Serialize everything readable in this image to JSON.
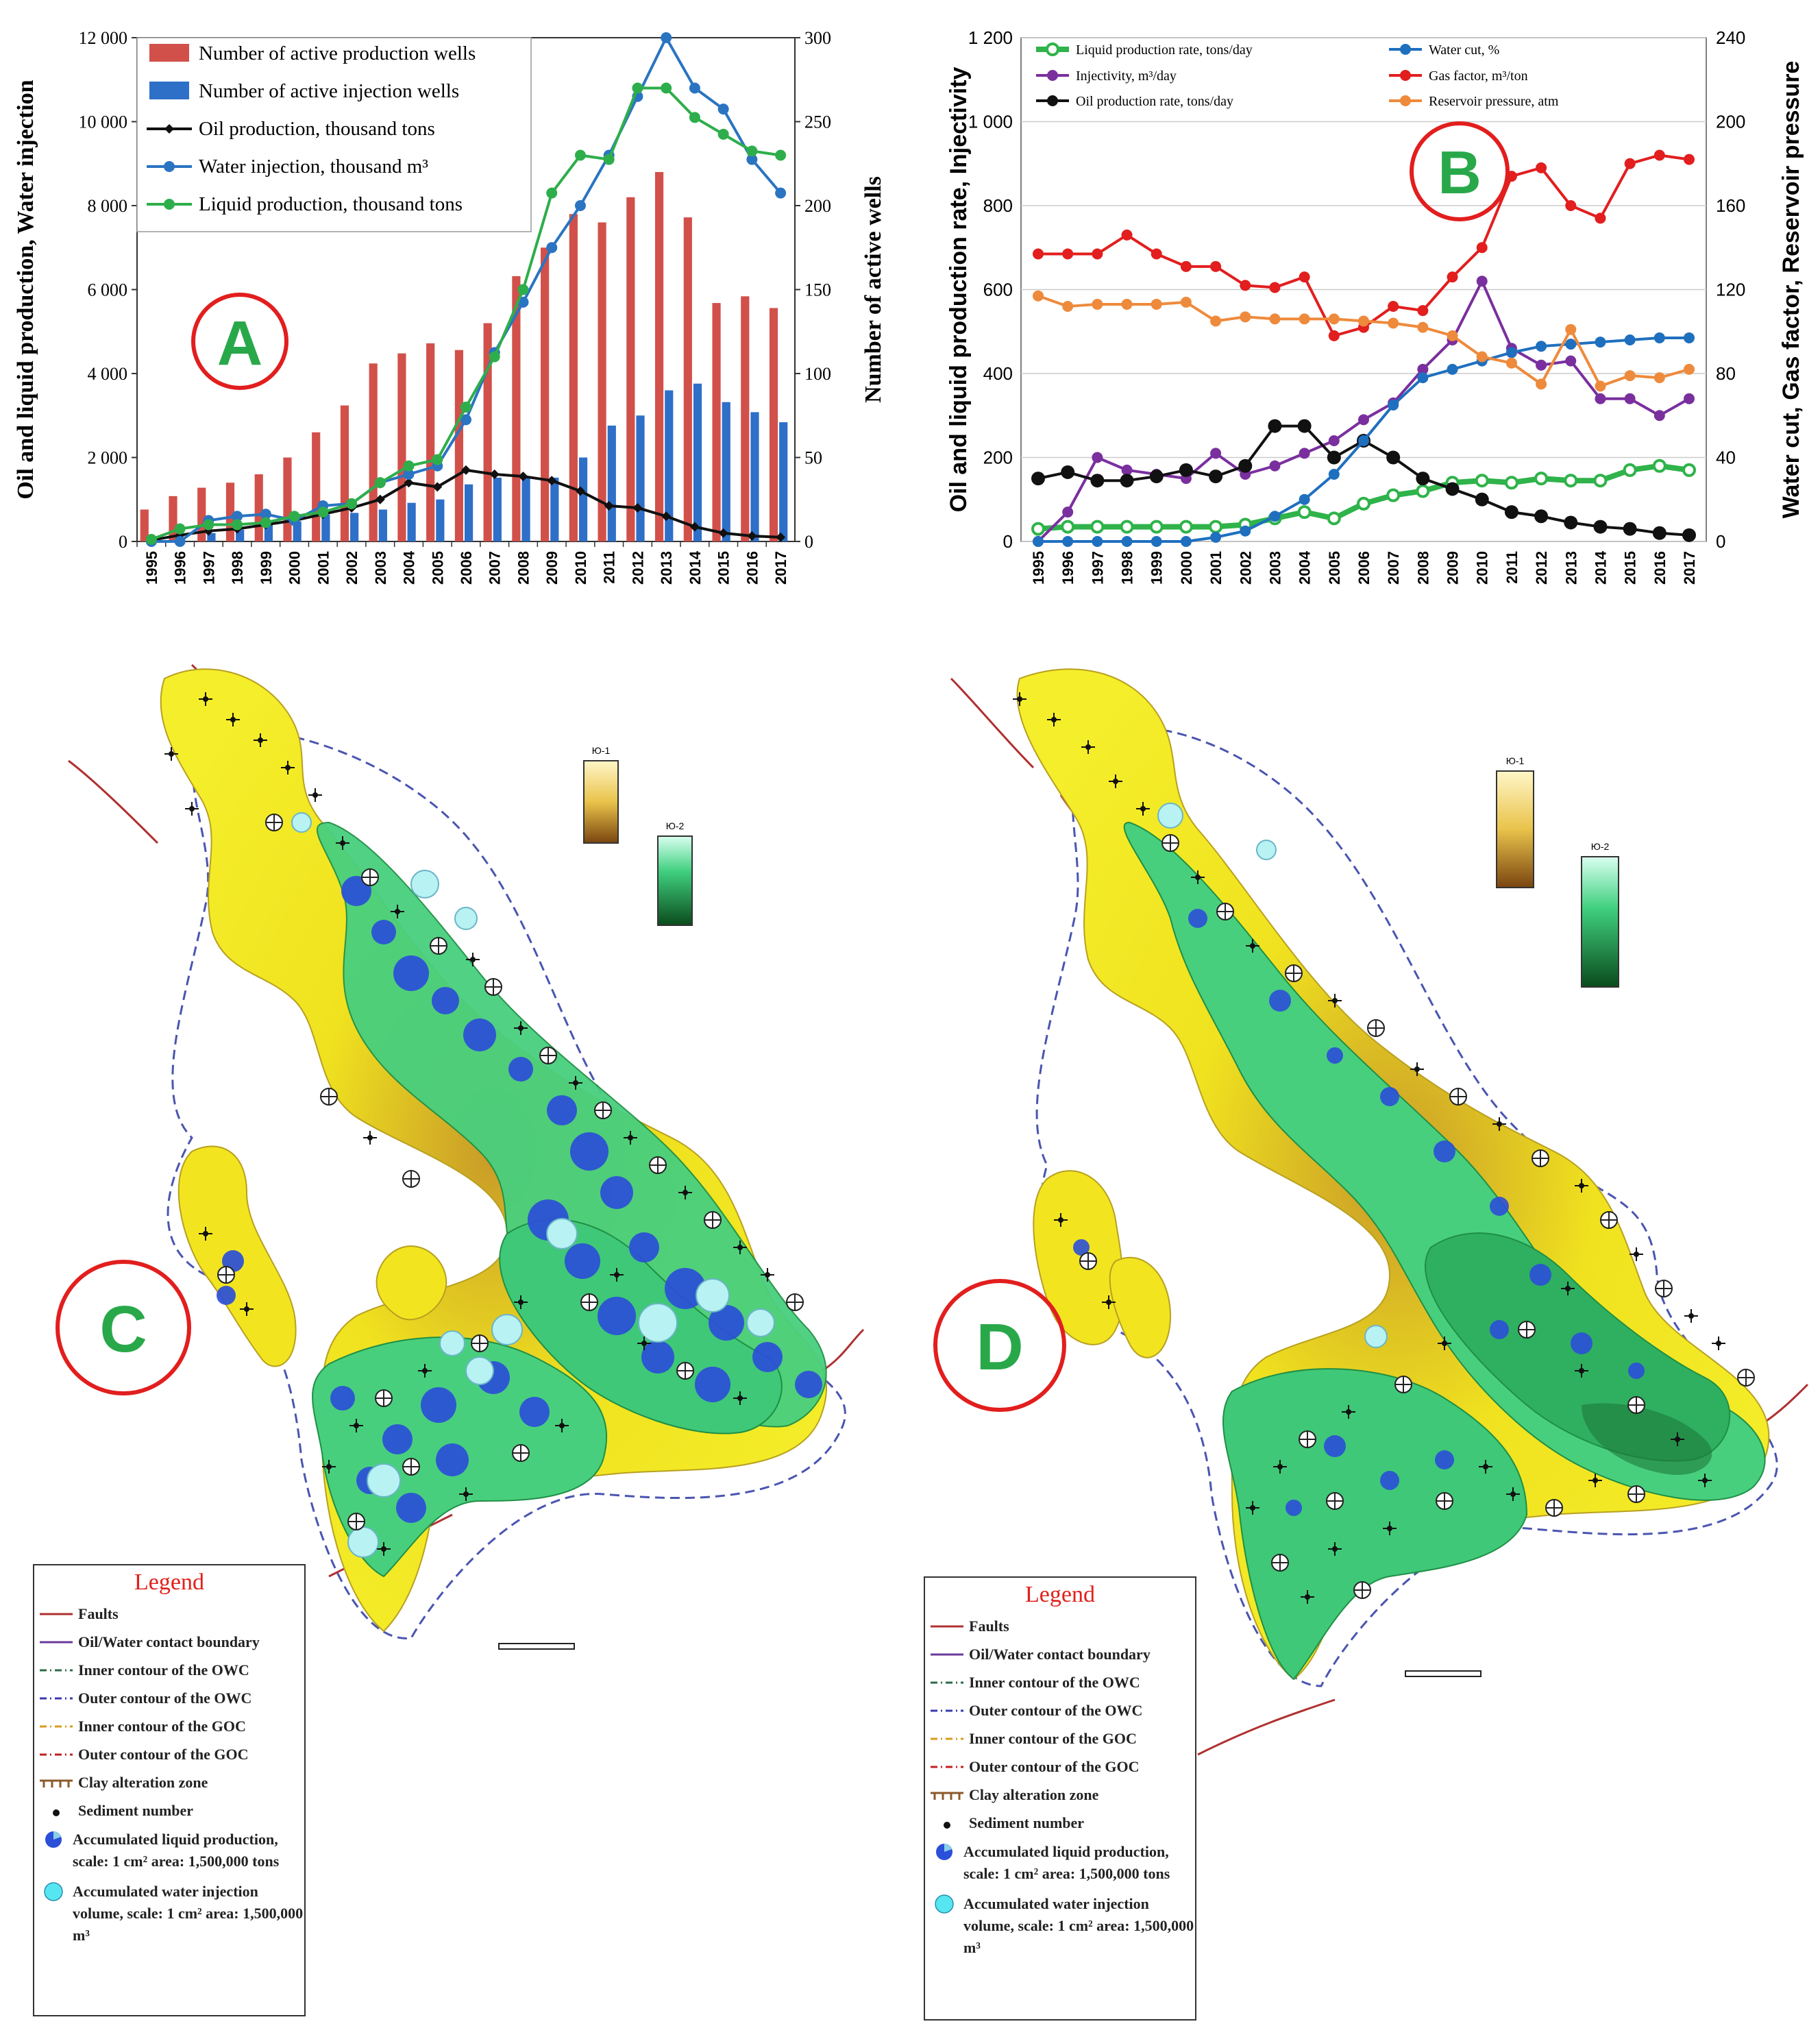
{
  "chart_data": [
    {
      "panel": "A",
      "type": "bar+line",
      "categories": [
        "1995",
        "1996",
        "1997",
        "1998",
        "1999",
        "2000",
        "2001",
        "2002",
        "2003",
        "2004",
        "2005",
        "2006",
        "2007",
        "2008",
        "2009",
        "2010",
        "2011",
        "2012",
        "2013",
        "2014",
        "2015",
        "2016",
        "2017"
      ],
      "ylabel": "Oil and liquid production, Water injection",
      "y2label": "Number of active wells",
      "ylim": [
        0,
        12000
      ],
      "y2lim": [
        0,
        300
      ],
      "yticks": [
        "0",
        "2 000",
        "4 000",
        "6 000",
        "8 000",
        "10 000",
        "12 000"
      ],
      "y2ticks": [
        "0",
        "50",
        "100",
        "150",
        "200",
        "250",
        "300"
      ],
      "bar_series": [
        {
          "name": "Number of active production wells",
          "color": "#d2504a",
          "axis": "right",
          "values": [
            19,
            27,
            32,
            35,
            40,
            50,
            65,
            81,
            106,
            112,
            118,
            114,
            130,
            158,
            175,
            195,
            190,
            205,
            220,
            193,
            142,
            146,
            139
          ]
        },
        {
          "name": "Number of active injection wells",
          "color": "#2e6fc8",
          "axis": "right",
          "values": [
            0,
            0,
            5,
            7,
            10,
            12,
            16,
            17,
            19,
            23,
            25,
            34,
            38,
            38,
            38,
            50,
            69,
            75,
            90,
            94,
            83,
            77,
            71
          ]
        }
      ],
      "line_series": [
        {
          "name": "Oil production, thousand tons",
          "color": "#111111",
          "axis": "left",
          "values": [
            30,
            150,
            250,
            300,
            400,
            500,
            650,
            800,
            1000,
            1400,
            1300,
            1700,
            1600,
            1550,
            1450,
            1200,
            850,
            800,
            600,
            350,
            200,
            130,
            100
          ]
        },
        {
          "name": "Water injection, thousand m³",
          "color": "#2a74c2",
          "axis": "left",
          "values": [
            0,
            0,
            500,
            600,
            650,
            500,
            850,
            900,
            1400,
            1600,
            1800,
            2900,
            4500,
            5700,
            7000,
            8000,
            9200,
            10600,
            12000,
            10800,
            10300,
            9100,
            8300
          ]
        },
        {
          "name": "Liquid production, thousand tons",
          "color": "#2eae4b",
          "axis": "left",
          "values": [
            50,
            300,
            400,
            400,
            450,
            600,
            700,
            900,
            1400,
            1800,
            1950,
            3200,
            4400,
            6000,
            8300,
            9200,
            9100,
            10800,
            10800,
            10100,
            9700,
            9300,
            9200
          ]
        }
      ],
      "label": "A"
    },
    {
      "panel": "B",
      "type": "line",
      "categories": [
        "1995",
        "1996",
        "1997",
        "1998",
        "1999",
        "2000",
        "2001",
        "2002",
        "2003",
        "2004",
        "2005",
        "2006",
        "2007",
        "2008",
        "2009",
        "2010",
        "2011",
        "2012",
        "2013",
        "2014",
        "2015",
        "2016",
        "2017"
      ],
      "ylabel": "Oil and liquid production rate, Injectivity",
      "y2label": "Water cut, Gas factor, Reservoir pressure",
      "ylim": [
        0,
        1200
      ],
      "y2lim": [
        0,
        240
      ],
      "yticks": [
        "0",
        "200",
        "400",
        "600",
        "800",
        "1 000",
        "1 200"
      ],
      "y2ticks": [
        "0",
        "40",
        "80",
        "120",
        "160",
        "200",
        "240"
      ],
      "series": [
        {
          "name": "Liquid production rate, tons/day",
          "color": "#2fb34a",
          "axis": "left",
          "values": [
            30,
            35,
            35,
            35,
            35,
            35,
            35,
            40,
            55,
            70,
            55,
            90,
            110,
            120,
            140,
            145,
            140,
            150,
            145,
            145,
            170,
            180,
            170
          ]
        },
        {
          "name": "Injectivity, m³/day",
          "color": "#7a2f9e",
          "axis": "left",
          "values": [
            0,
            70,
            200,
            170,
            160,
            150,
            210,
            160,
            180,
            210,
            240,
            290,
            330,
            410,
            480,
            620,
            460,
            420,
            430,
            340,
            340,
            300,
            340
          ]
        },
        {
          "name": "Oil production rate, tons/day",
          "color": "#111111",
          "axis": "left",
          "values": [
            150,
            165,
            145,
            145,
            155,
            170,
            155,
            180,
            275,
            275,
            200,
            240,
            200,
            150,
            125,
            100,
            70,
            60,
            45,
            35,
            30,
            20,
            15
          ]
        },
        {
          "name": "Water cut, %",
          "color": "#1f6fbf",
          "axis": "right",
          "values": [
            0,
            0,
            0,
            0,
            0,
            0,
            2,
            5,
            12,
            20,
            32,
            48,
            65,
            78,
            82,
            86,
            90,
            93,
            94,
            95,
            96,
            97,
            97
          ]
        },
        {
          "name": "Gas factor, m³/ton",
          "color": "#e21e1e",
          "axis": "right",
          "values": [
            137,
            137,
            137,
            146,
            137,
            131,
            131,
            122,
            121,
            126,
            98,
            102,
            112,
            110,
            126,
            140,
            174,
            178,
            160,
            154,
            180,
            184,
            182
          ]
        },
        {
          "name": "Reservoir pressure, atm",
          "color": "#ee8a3c",
          "axis": "right",
          "values": [
            117,
            112,
            113,
            113,
            113,
            114,
            105,
            107,
            106,
            106,
            106,
            105,
            104,
            102,
            98,
            88,
            85,
            75,
            101,
            74,
            79,
            78,
            82
          ]
        }
      ],
      "label": "B"
    }
  ],
  "maps": {
    "c_label": "C",
    "d_label": "D",
    "scale_a": "Ю-1",
    "scale_b": "Ю-2",
    "legend": {
      "title": "Legend",
      "items": [
        {
          "text": "Faults"
        },
        {
          "text": "Oil/Water contact boundary"
        },
        {
          "text": "Inner contour of the OWC"
        },
        {
          "text": "Outer contour of the OWC"
        },
        {
          "text": "Inner contour of the GOC"
        },
        {
          "text": "Outer contour of the GOC"
        },
        {
          "text": "Clay alteration zone"
        },
        {
          "text": "Sediment number"
        },
        {
          "text": "Accumulated liquid production, scale: 1 cm² area: 1,500,000 tons"
        },
        {
          "text": "Accumulated water injection volume, scale: 1 cm² area: 1,500,000 m³"
        }
      ]
    }
  },
  "colors": {
    "map_yellow": "#f3ec1f",
    "map_green": "#3fcf7e",
    "map_blue": "#2b4fd8",
    "circle_red": "#e21e1e"
  }
}
